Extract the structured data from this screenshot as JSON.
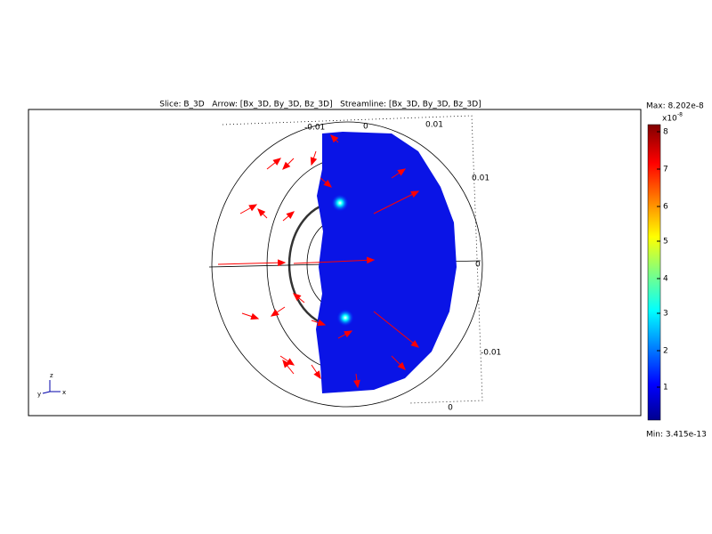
{
  "plot": {
    "title": "Slice: B_3D   Arrow: [Bx_3D, By_3D, Bz_3D]   Streamline: [Bx_3D, By_3D, Bz_3D]",
    "axis_labels": [
      "-0.01",
      "0",
      "0.01",
      "0.01",
      "0",
      "-0.01",
      "0"
    ],
    "triad": [
      "z",
      "y",
      "x"
    ]
  },
  "colorbar": {
    "max": "Max: 8.202e-8",
    "exponent": "x10",
    "exponent_power": "-8",
    "ticks": [
      "8",
      "7",
      "6",
      "5",
      "4",
      "3",
      "2",
      "1"
    ],
    "min": "Min: 3.415e-13"
  }
}
